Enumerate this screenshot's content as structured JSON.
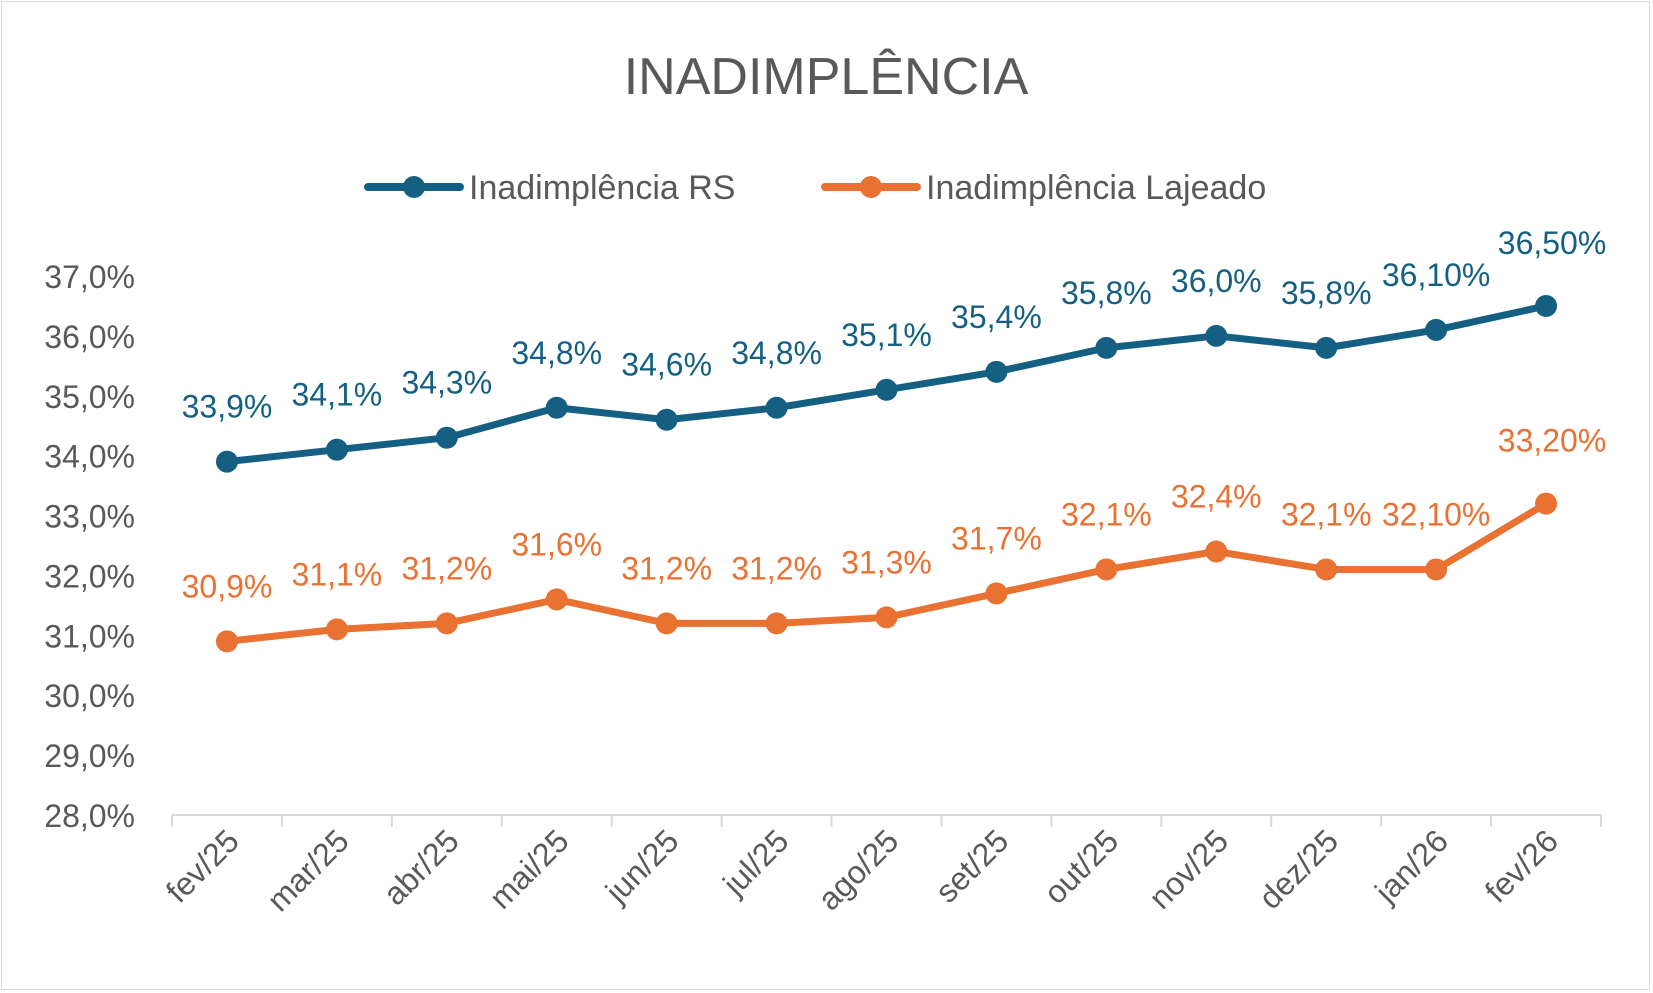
{
  "chart_data": {
    "type": "line",
    "title": "INADIMPLÊNCIA",
    "xlabel": "",
    "ylabel": "",
    "ylim": [
      28.0,
      37.0
    ],
    "y_ticks": [
      "28,0%",
      "29,0%",
      "30,0%",
      "31,0%",
      "32,0%",
      "33,0%",
      "34,0%",
      "35,0%",
      "36,0%",
      "37,0%"
    ],
    "grid": false,
    "legend": "top",
    "categories": [
      "fev/25",
      "mar/25",
      "abr/25",
      "mai/25",
      "jun/25",
      "jul/25",
      "ago/25",
      "set/25",
      "out/25",
      "nov/25",
      "dez/25",
      "jan/26",
      "fev/26"
    ],
    "series": [
      {
        "name": "Inadimplência RS",
        "color": "#156082",
        "values": [
          33.9,
          34.1,
          34.3,
          34.8,
          34.6,
          34.8,
          35.1,
          35.4,
          35.8,
          36.0,
          35.8,
          36.1,
          36.5
        ],
        "labels": [
          "33,9%",
          "34,1%",
          "34,3%",
          "34,8%",
          "34,6%",
          "34,8%",
          "35,1%",
          "35,4%",
          "35,8%",
          "36,0%",
          "35,8%",
          "36,10%",
          "36,50%"
        ]
      },
      {
        "name": "Inadimplência Lajeado",
        "color": "#E97132",
        "values": [
          30.9,
          31.1,
          31.2,
          31.6,
          31.2,
          31.2,
          31.3,
          31.7,
          32.1,
          32.4,
          32.1,
          32.1,
          33.2
        ],
        "labels": [
          "30,9%",
          "31,1%",
          "31,2%",
          "31,6%",
          "31,2%",
          "31,2%",
          "31,3%",
          "31,7%",
          "32,1%",
          "32,4%",
          "32,1%",
          "32,10%",
          "33,20%"
        ]
      }
    ]
  }
}
